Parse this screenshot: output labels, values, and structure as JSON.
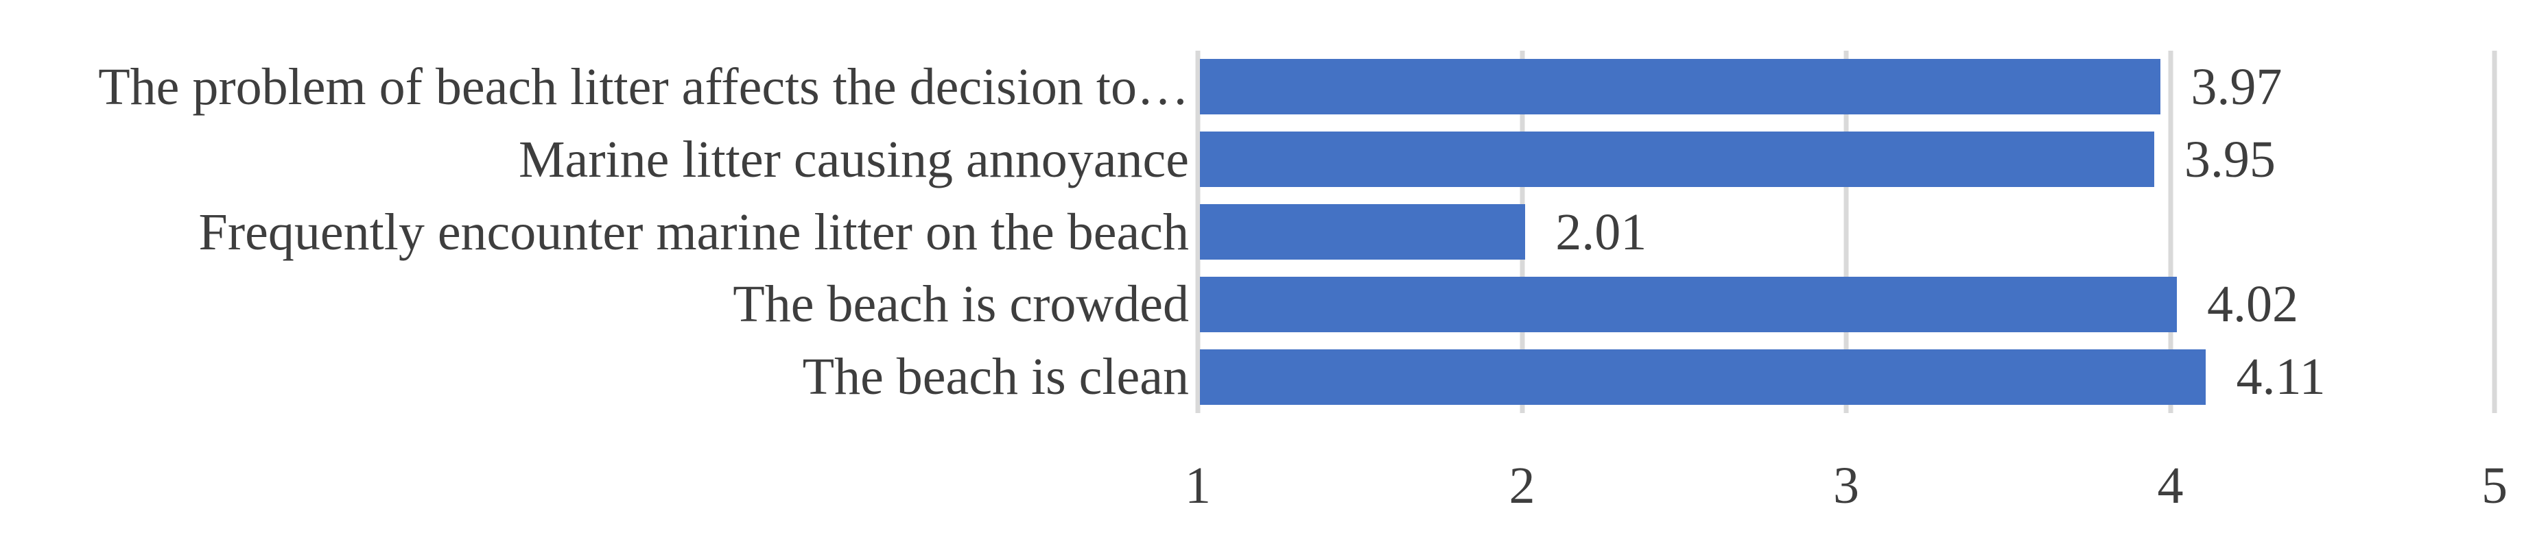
{
  "chart_data": {
    "type": "bar",
    "orientation": "horizontal",
    "title": "",
    "xlabel": "",
    "ylabel": "",
    "categories": [
      "The problem of beach litter affects the decision to…",
      "Marine litter causing annoyance",
      "Frequently encounter marine litter on the beach",
      "The beach is crowded",
      "The beach is clean"
    ],
    "values": [
      3.97,
      3.95,
      2.01,
      4.02,
      4.11
    ],
    "data_labels": [
      "3.97",
      "3.95",
      "2.01",
      "4.02",
      "4.11"
    ],
    "xlim": [
      1,
      5
    ],
    "x_ticks": [
      1,
      2,
      3,
      4,
      5
    ],
    "x_tick_labels": [
      "1",
      "2",
      "3",
      "4",
      "5"
    ],
    "grid": true,
    "legend": false,
    "bar_color": "#4472C4",
    "gridline_color": "#D9D9D9",
    "text_color": "#3E3E3E",
    "background_color": "#FFFFFF"
  }
}
